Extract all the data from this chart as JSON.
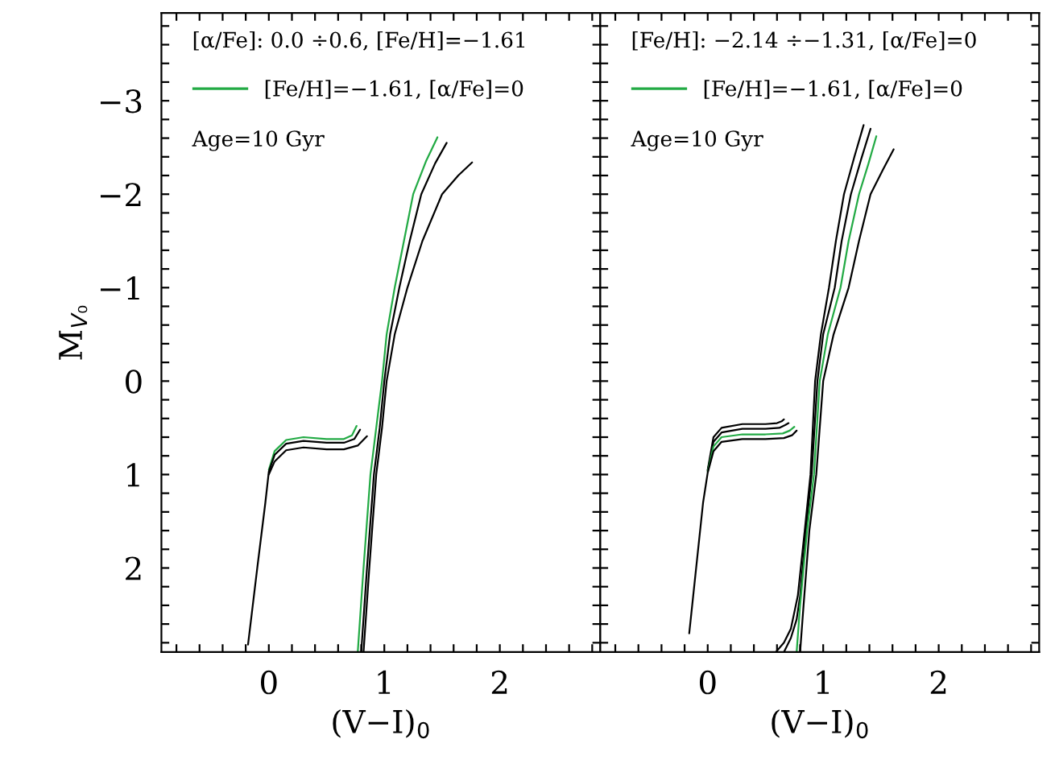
{
  "chart_data": [
    {
      "type": "line",
      "xlabel": "(V−I)$_{0}$",
      "ylabel": "M$_{V₀}$",
      "xlim": [
        -0.93,
        2.87
      ],
      "ylim": [
        2.9,
        -3.94
      ],
      "xticks": [
        {
          "value": -0.8,
          "label": null
        },
        {
          "value": -0.6,
          "label": null
        },
        {
          "value": -0.4,
          "label": null
        },
        {
          "value": -0.2,
          "label": null
        },
        0,
        {
          "value": 0.2,
          "label": null
        },
        {
          "value": 0.4,
          "label": null
        },
        {
          "value": 0.6,
          "label": null
        },
        {
          "value": 0.8,
          "label": null
        },
        1,
        {
          "value": 1.2,
          "label": null
        },
        {
          "value": 1.4,
          "label": null
        },
        {
          "value": 1.6,
          "label": null
        },
        {
          "value": 1.8,
          "label": null
        },
        2,
        {
          "value": 2.2,
          "label": null
        },
        {
          "value": 2.4,
          "label": null
        },
        {
          "value": 2.6,
          "label": null
        },
        {
          "value": 2.8,
          "label": null
        }
      ],
      "yticks": [
        {
          "value": -3.8,
          "label": null
        },
        {
          "value": -3.6,
          "label": null
        },
        {
          "value": -3.4,
          "label": null
        },
        {
          "value": -3.2,
          "label": null
        },
        {
          "value": -3,
          "label": "−3"
        },
        {
          "value": -2.8,
          "label": null
        },
        {
          "value": -2.6,
          "label": null
        },
        {
          "value": -2.4,
          "label": null
        },
        {
          "value": -2.2,
          "label": null
        },
        {
          "value": -2,
          "label": "−2"
        },
        {
          "value": -1.8,
          "label": null
        },
        {
          "value": -1.6,
          "label": null
        },
        {
          "value": -1.4,
          "label": null
        },
        {
          "value": -1.2,
          "label": null
        },
        {
          "value": -1,
          "label": "−1"
        },
        {
          "value": -0.8,
          "label": null
        },
        {
          "value": -0.6,
          "label": null
        },
        {
          "value": -0.4,
          "label": null
        },
        {
          "value": -0.2,
          "label": null
        },
        0,
        {
          "value": 0.2,
          "label": null
        },
        {
          "value": 0.4,
          "label": null
        },
        {
          "value": 0.6,
          "label": null
        },
        {
          "value": 0.8,
          "label": null
        },
        1,
        {
          "value": 1.2,
          "label": null
        },
        {
          "value": 1.4,
          "label": null
        },
        {
          "value": 1.6,
          "label": null
        },
        {
          "value": 1.8,
          "label": null
        },
        2,
        {
          "value": 2.2,
          "label": null
        },
        {
          "value": 2.4,
          "label": null
        },
        {
          "value": 2.6,
          "label": null
        },
        {
          "value": 2.8,
          "label": null
        }
      ],
      "annotations": [
        "[α/Fe]: 0.0 ÷0.6, [Fe/H]=−1.61",
        "Age=10 Gyr"
      ],
      "legend": "top left",
      "grid": false,
      "marker": "none",
      "line_style": "solid",
      "series": [
        {
          "name": "[Fe/H]=−1.61, [α/Fe]=0",
          "color": "#22aa44",
          "x": [
            0.0,
            0.05,
            0.15,
            0.3,
            0.5,
            0.65,
            0.72,
            0.76,
            null,
            0.77,
            0.82,
            0.88,
            0.93,
            0.98,
            1.02,
            1.09,
            1.17,
            1.25,
            1.36,
            1.46
          ],
          "values": [
            0.95,
            0.75,
            0.63,
            0.6,
            0.62,
            0.62,
            0.58,
            0.48,
            null,
            2.9,
            2.0,
            1.0,
            0.5,
            0.0,
            -0.5,
            -1.0,
            -1.5,
            -2.0,
            -2.35,
            -2.61
          ]
        },
        {
          "color": "#000000",
          "x": [
            -0.18,
            -0.1,
            -0.03,
            0.0,
            0.05,
            0.15,
            0.3,
            0.5,
            0.65,
            0.74,
            0.79,
            null,
            0.8,
            0.85,
            0.91,
            0.96,
            1.0,
            1.05,
            1.13,
            1.22,
            1.32,
            1.44,
            1.54
          ],
          "values": [
            2.82,
            2.0,
            1.3,
            0.97,
            0.79,
            0.67,
            0.64,
            0.66,
            0.66,
            0.62,
            0.52,
            null,
            2.9,
            2.0,
            1.0,
            0.5,
            0.0,
            -0.5,
            -1.0,
            -1.5,
            -2.0,
            -2.33,
            -2.55
          ]
        },
        {
          "color": "#000000",
          "x": [
            0.0,
            0.05,
            0.15,
            0.3,
            0.5,
            0.65,
            0.77,
            0.85,
            null,
            0.82,
            0.87,
            0.93,
            0.98,
            1.02,
            1.09,
            1.2,
            1.33,
            1.5,
            1.64,
            1.76
          ],
          "values": [
            1.0,
            0.86,
            0.74,
            0.71,
            0.73,
            0.73,
            0.69,
            0.59,
            null,
            2.9,
            2.0,
            1.0,
            0.5,
            0.0,
            -0.5,
            -1.0,
            -1.5,
            -2.0,
            -2.2,
            -2.34
          ]
        }
      ]
    },
    {
      "type": "line",
      "xlabel": "(V−I)$_{0}$",
      "xlim": [
        -0.93,
        2.87
      ],
      "ylim": [
        2.9,
        -3.94
      ],
      "tick_labels": "x",
      "xticks": [
        {
          "value": -0.8,
          "label": null
        },
        {
          "value": -0.6,
          "label": null
        },
        {
          "value": -0.4,
          "label": null
        },
        {
          "value": -0.2,
          "label": null
        },
        0,
        {
          "value": 0.2,
          "label": null
        },
        {
          "value": 0.4,
          "label": null
        },
        {
          "value": 0.6,
          "label": null
        },
        {
          "value": 0.8,
          "label": null
        },
        1,
        {
          "value": 1.2,
          "label": null
        },
        {
          "value": 1.4,
          "label": null
        },
        {
          "value": 1.6,
          "label": null
        },
        {
          "value": 1.8,
          "label": null
        },
        2,
        {
          "value": 2.2,
          "label": null
        },
        {
          "value": 2.4,
          "label": null
        },
        {
          "value": 2.6,
          "label": null
        },
        {
          "value": 2.8,
          "label": null
        }
      ],
      "yticks": [
        {
          "value": -3.8,
          "label": null
        },
        {
          "value": -3.6,
          "label": null
        },
        {
          "value": -3.4,
          "label": null
        },
        {
          "value": -3.2,
          "label": null
        },
        {
          "value": -3,
          "label": null
        },
        {
          "value": -2.8,
          "label": null
        },
        {
          "value": -2.6,
          "label": null
        },
        {
          "value": -2.4,
          "label": null
        },
        {
          "value": -2.2,
          "label": null
        },
        {
          "value": -2,
          "label": null
        },
        {
          "value": -1.8,
          "label": null
        },
        {
          "value": -1.6,
          "label": null
        },
        {
          "value": -1.4,
          "label": null
        },
        {
          "value": -1.2,
          "label": null
        },
        {
          "value": -1,
          "label": null
        },
        {
          "value": -0.8,
          "label": null
        },
        {
          "value": -0.6,
          "label": null
        },
        {
          "value": -0.4,
          "label": null
        },
        {
          "value": -0.2,
          "label": null
        },
        {
          "value": 0,
          "label": null
        },
        {
          "value": 0.2,
          "label": null
        },
        {
          "value": 0.4,
          "label": null
        },
        {
          "value": 0.6,
          "label": null
        },
        {
          "value": 0.8,
          "label": null
        },
        {
          "value": 1,
          "label": null
        },
        {
          "value": 1.2,
          "label": null
        },
        {
          "value": 1.4,
          "label": null
        },
        {
          "value": 1.6,
          "label": null
        },
        {
          "value": 1.8,
          "label": null
        },
        {
          "value": 2,
          "label": null
        },
        {
          "value": 2.2,
          "label": null
        },
        {
          "value": 2.4,
          "label": null
        },
        {
          "value": 2.6,
          "label": null
        },
        {
          "value": 2.8,
          "label": null
        }
      ],
      "annotations": [
        "[Fe/H]: −2.14 ÷−1.31, [α/Fe]=0",
        "Age=10 Gyr"
      ],
      "legend": "top left",
      "grid": false,
      "marker": "none",
      "line_style": "solid",
      "series": [
        {
          "color": "#000000",
          "x": [
            0.0,
            0.05,
            0.12,
            0.3,
            0.5,
            0.6,
            0.64,
            0.66,
            null,
            0.59,
            0.66,
            0.72,
            0.78,
            0.84,
            0.89,
            0.93,
            0.98,
            1.05,
            1.11,
            1.18,
            1.27,
            1.35
          ],
          "values": [
            0.95,
            0.6,
            0.5,
            0.46,
            0.46,
            0.45,
            0.43,
            0.41,
            null,
            2.9,
            2.8,
            2.65,
            2.3,
            1.6,
            1.0,
            0.0,
            -0.5,
            -1.0,
            -1.5,
            -2.0,
            -2.4,
            -2.74
          ]
        },
        {
          "color": "#000000",
          "x": [
            0.0,
            0.05,
            0.12,
            0.3,
            0.5,
            0.62,
            0.67,
            0.7,
            null,
            0.66,
            0.72,
            0.77,
            0.8,
            0.85,
            0.9,
            0.95,
            1.0,
            1.1,
            1.16,
            1.24,
            1.33,
            1.41
          ],
          "values": [
            0.96,
            0.65,
            0.55,
            0.51,
            0.51,
            0.5,
            0.47,
            0.45,
            null,
            2.9,
            2.75,
            2.55,
            2.3,
            1.6,
            1.0,
            0.0,
            -0.5,
            -1.0,
            -1.5,
            -2.0,
            -2.38,
            -2.7
          ]
        },
        {
          "name": "[Fe/H]=−1.61, [α/Fe]=0",
          "color": "#22aa44",
          "x": [
            0.0,
            0.05,
            0.12,
            0.3,
            0.5,
            0.65,
            0.71,
            0.75,
            null,
            0.77,
            0.8,
            0.86,
            0.92,
            0.97,
            1.04,
            1.15,
            1.22,
            1.31,
            1.39,
            1.46
          ],
          "values": [
            0.97,
            0.7,
            0.6,
            0.57,
            0.57,
            0.56,
            0.53,
            0.49,
            null,
            2.9,
            2.4,
            1.6,
            1.0,
            0.0,
            -0.5,
            -1.0,
            -1.5,
            -2.0,
            -2.32,
            -2.62
          ]
        },
        {
          "color": "#000000",
          "x": [
            -0.16,
            -0.1,
            -0.04,
            0.0,
            0.05,
            0.12,
            0.3,
            0.5,
            0.66,
            0.73,
            0.77,
            null,
            0.8,
            0.83,
            0.88,
            0.94,
            1.0,
            1.09,
            1.22,
            1.31,
            1.41,
            1.52,
            1.61
          ],
          "values": [
            2.7,
            2.0,
            1.3,
            0.98,
            0.75,
            0.65,
            0.62,
            0.62,
            0.61,
            0.58,
            0.53,
            null,
            2.9,
            2.4,
            1.6,
            1.0,
            0.0,
            -0.5,
            -1.0,
            -1.5,
            -2.0,
            -2.27,
            -2.48
          ]
        }
      ]
    }
  ]
}
